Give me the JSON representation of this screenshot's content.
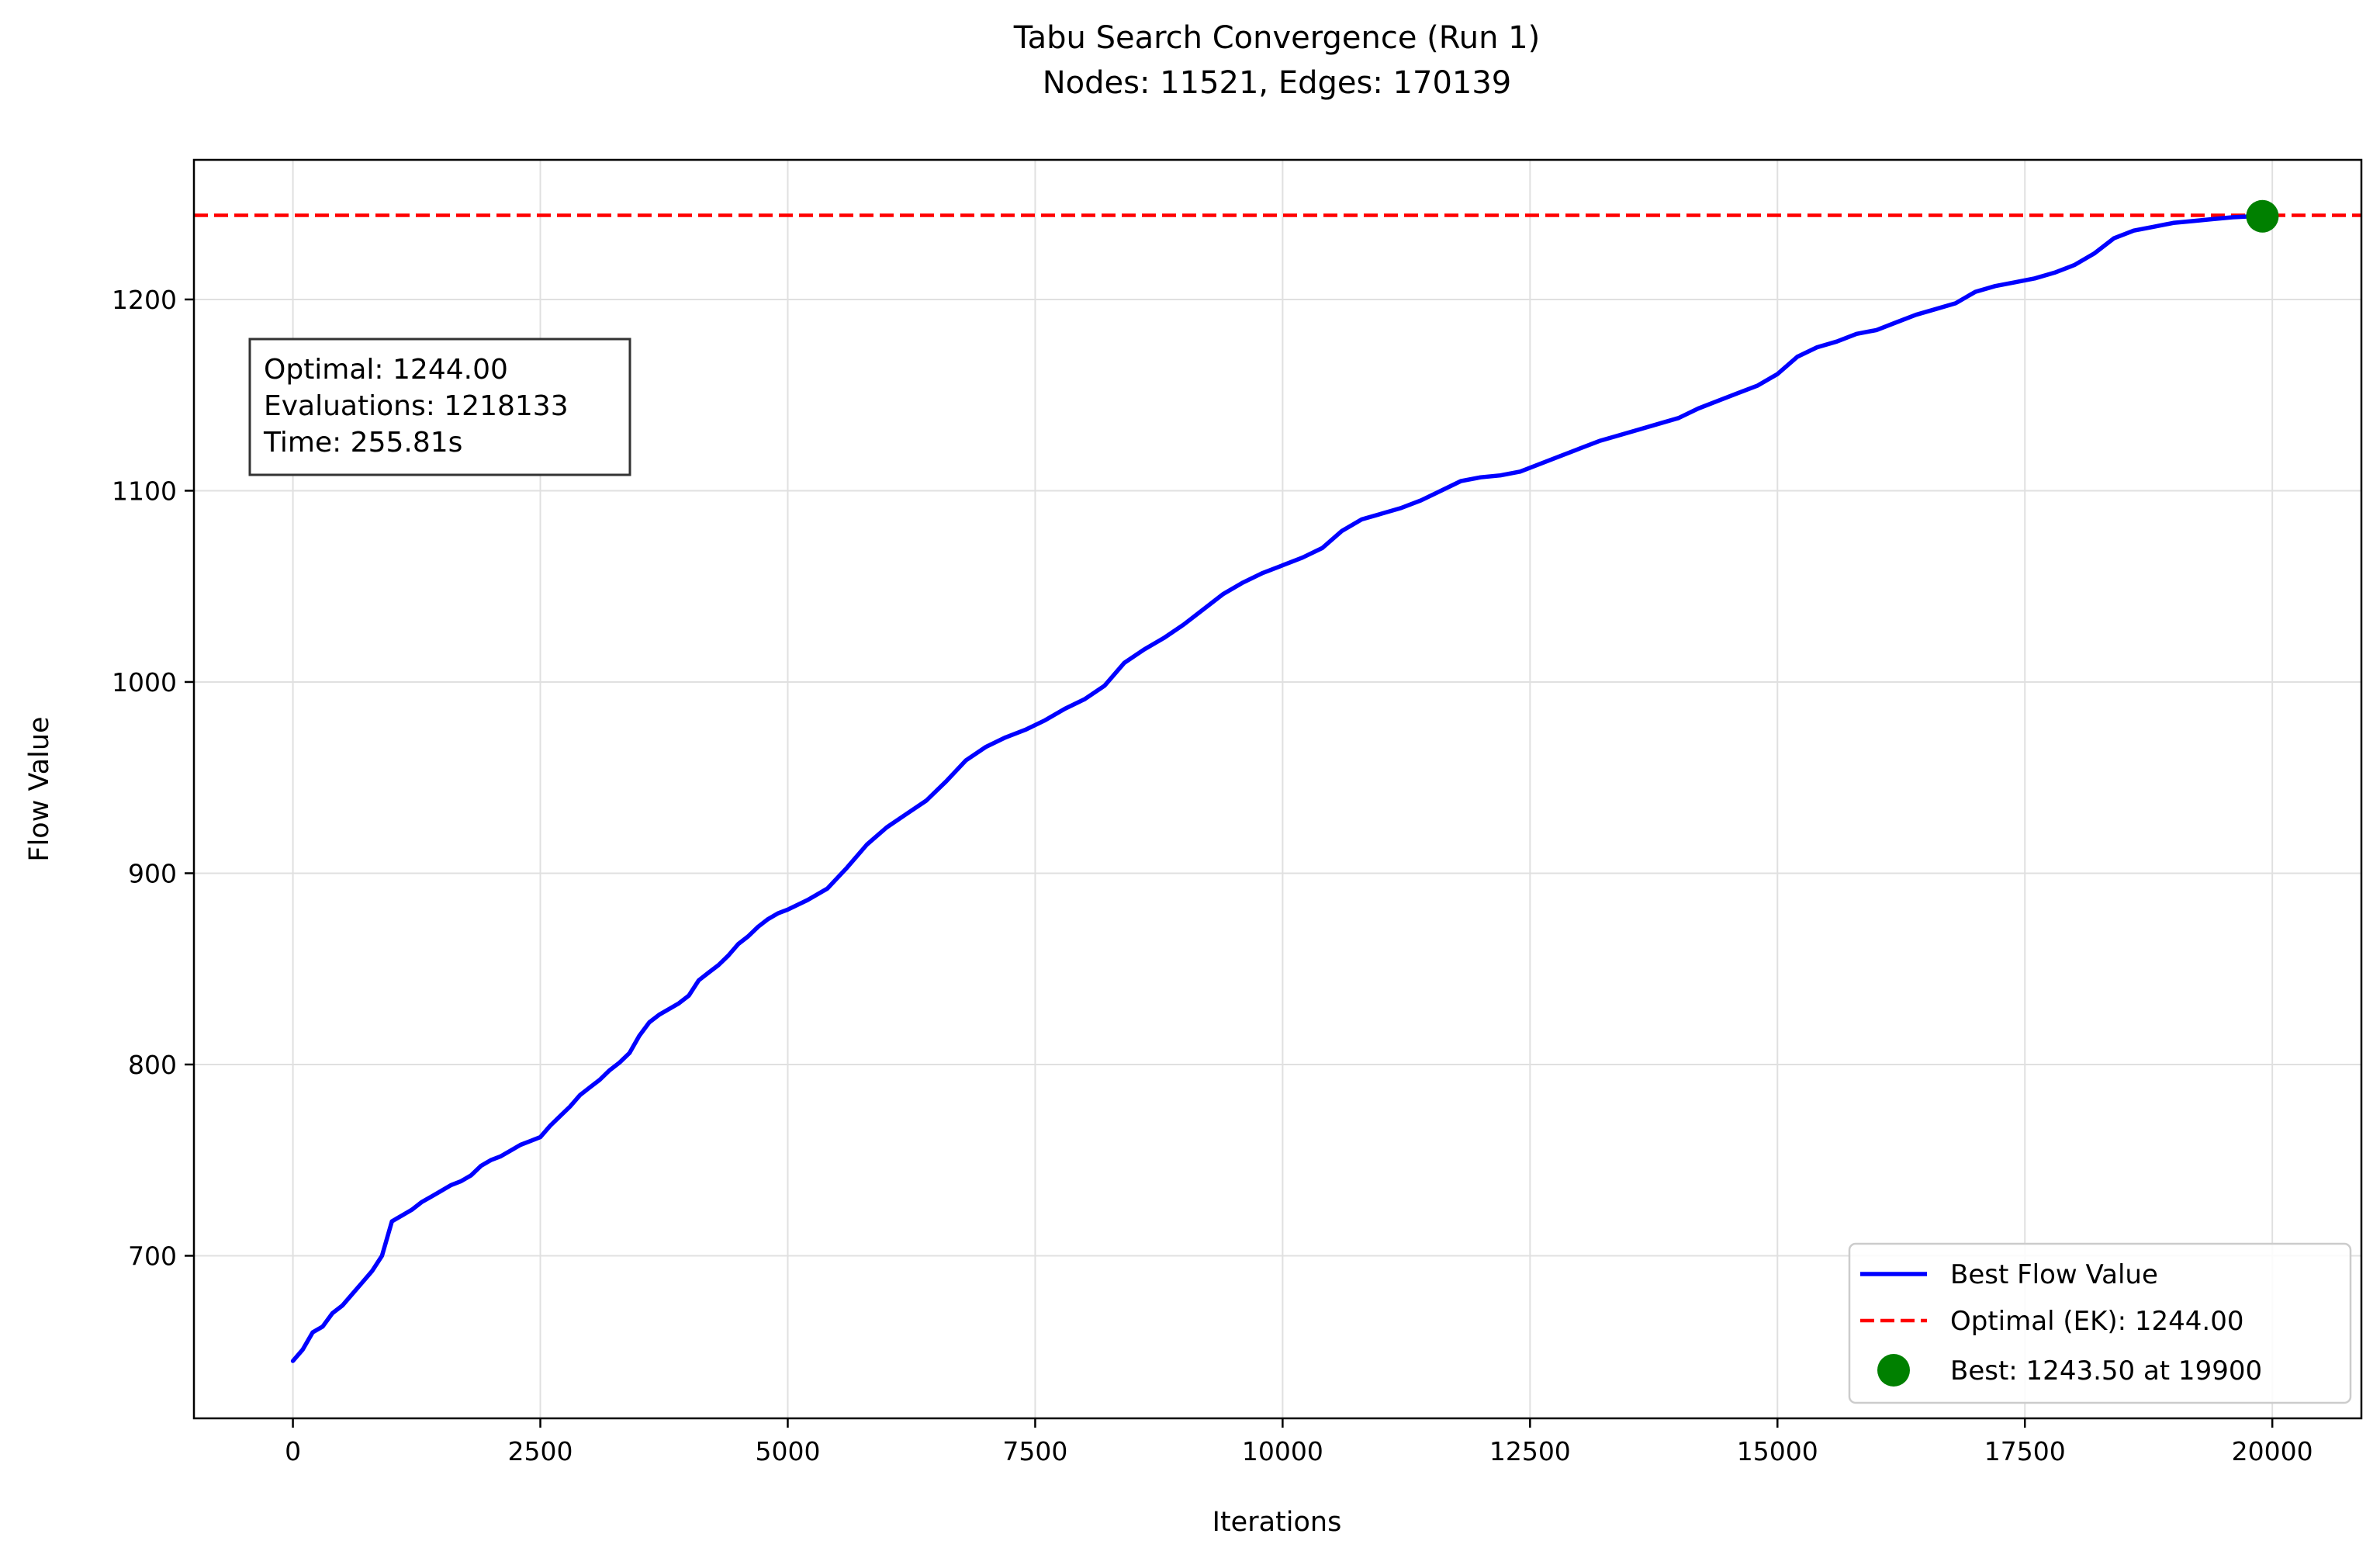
{
  "chart_data": {
    "type": "line",
    "title": "Tabu Search Convergence (Run 1)",
    "subtitle": "Nodes: 11521, Edges: 170139",
    "xlabel": "Iterations",
    "ylabel": "Flow Value",
    "xlim": [
      -1000,
      20900
    ],
    "ylim": [
      615,
      1273
    ],
    "xticks": [
      0,
      2500,
      5000,
      7500,
      10000,
      12500,
      15000,
      17500,
      20000
    ],
    "yticks": [
      700,
      800,
      900,
      1000,
      1100,
      1200
    ],
    "grid": true,
    "legend_position": "lower-right",
    "series": [
      {
        "name": "Best Flow Value",
        "color": "#0000ff",
        "style": "solid",
        "x": [
          0,
          100,
          200,
          300,
          400,
          500,
          600,
          700,
          800,
          900,
          1000,
          1100,
          1200,
          1300,
          1400,
          1500,
          1600,
          1700,
          1800,
          1900,
          2000,
          2100,
          2200,
          2300,
          2400,
          2500,
          2600,
          2700,
          2800,
          2900,
          3000,
          3100,
          3200,
          3300,
          3400,
          3500,
          3600,
          3700,
          3800,
          3900,
          4000,
          4100,
          4200,
          4300,
          4400,
          4500,
          4600,
          4700,
          4800,
          4900,
          5000,
          5200,
          5400,
          5600,
          5800,
          6000,
          6200,
          6400,
          6600,
          6800,
          7000,
          7200,
          7400,
          7600,
          7800,
          8000,
          8200,
          8400,
          8600,
          8800,
          9000,
          9200,
          9400,
          9600,
          9800,
          10000,
          10200,
          10400,
          10600,
          10800,
          11000,
          11200,
          11400,
          11600,
          11800,
          12000,
          12200,
          12400,
          12600,
          12800,
          13000,
          13200,
          13400,
          13600,
          13800,
          14000,
          14200,
          14400,
          14600,
          14800,
          15000,
          15200,
          15400,
          15600,
          15800,
          16000,
          16200,
          16400,
          16600,
          16800,
          17000,
          17200,
          17400,
          17600,
          17800,
          18000,
          18200,
          18400,
          18600,
          18800,
          19000,
          19200,
          19400,
          19600,
          19800,
          19900
        ],
        "y": [
          645,
          651,
          660,
          663,
          670,
          674,
          680,
          686,
          692,
          700,
          718,
          721,
          724,
          728,
          731,
          734,
          737,
          739,
          742,
          747,
          750,
          752,
          755,
          758,
          760,
          762,
          768,
          773,
          778,
          784,
          788,
          792,
          797,
          801,
          806,
          815,
          822,
          826,
          829,
          832,
          836,
          844,
          848,
          852,
          857,
          863,
          867,
          872,
          876,
          879,
          881,
          886,
          892,
          903,
          915,
          924,
          931,
          938,
          948,
          959,
          966,
          971,
          975,
          980,
          986,
          991,
          998,
          1010,
          1017,
          1023,
          1030,
          1038,
          1046,
          1052,
          1057,
          1061,
          1065,
          1070,
          1079,
          1085,
          1088,
          1091,
          1095,
          1100,
          1105,
          1107,
          1108,
          1110,
          1114,
          1118,
          1122,
          1126,
          1129,
          1132,
          1135,
          1138,
          1143,
          1147,
          1151,
          1155,
          1161,
          1170,
          1175,
          1178,
          1182,
          1184,
          1188,
          1192,
          1195,
          1198,
          1204,
          1207,
          1209,
          1211,
          1214,
          1218,
          1224,
          1232,
          1236,
          1238,
          1240,
          1241,
          1242,
          1243,
          1243.5,
          1243.5
        ]
      },
      {
        "name": "Optimal (EK): 1244.00",
        "color": "#ff0000",
        "style": "dashed",
        "y_constant": 1244.0
      }
    ],
    "points": [
      {
        "name": "Best: 1243.50 at 19900",
        "x": 19900,
        "y": 1243.5,
        "color": "#008000"
      }
    ],
    "annotation": {
      "lines": [
        "Optimal: 1244.00",
        "Evaluations: 1218133",
        "Time: 255.81s"
      ]
    }
  }
}
